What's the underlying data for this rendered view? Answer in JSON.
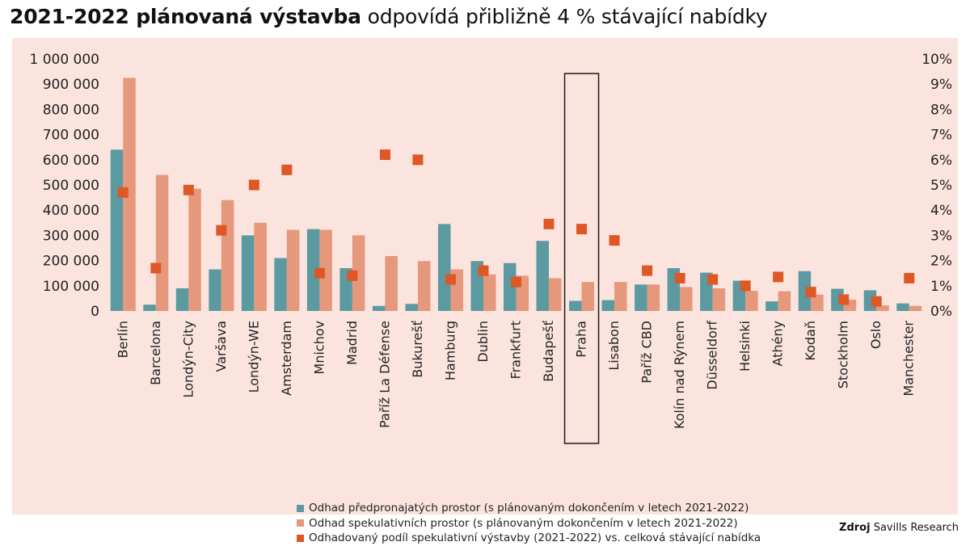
{
  "title": {
    "bold": "2021-2022 plánovaná výstavba",
    "normal": "odpovídá přibližně 4 % stávající nabídky"
  },
  "source": {
    "label": "Zdroj",
    "text": "Savills Research"
  },
  "colors": {
    "background": "#fbe4de",
    "preleased": "#5b9aa0",
    "speculative": "#e5987c",
    "share": "#de5826",
    "highlight_box": "#1a1a1a"
  },
  "chart_data": {
    "type": "bar",
    "categories": [
      "Berlín",
      "Barcelona",
      "Londýn-City",
      "Varšava",
      "Londýn-WE",
      "Amsterdam",
      "Mnichov",
      "Madrid",
      "Paříž La Défense",
      "Bukurešť",
      "Hamburg",
      "Dublin",
      "Frankfurt",
      "Budapešť",
      "Praha",
      "Lisabon",
      "Paříž CBD",
      "Kolín nad Rýnem",
      "Düsseldorf",
      "Helsinki",
      "Athény",
      "Kodaň",
      "Stockholm",
      "Oslo",
      "Manchester"
    ],
    "highlighted_category": "Praha",
    "series": [
      {
        "name": "Odhad předpronajatých prostor (s plánovaným dokončením v letech 2021-2022)",
        "kind": "bar",
        "axis": "left",
        "values": [
          640000,
          25000,
          90000,
          165000,
          300000,
          210000,
          325000,
          170000,
          20000,
          28000,
          345000,
          198000,
          190000,
          278000,
          40000,
          43000,
          105000,
          170000,
          152000,
          120000,
          38000,
          158000,
          88000,
          82000,
          30000
        ]
      },
      {
        "name": "Odhad spekulativních prostor (s plánovaným dokončením v letech 2021-2022)",
        "kind": "bar",
        "axis": "left",
        "values": [
          925000,
          540000,
          485000,
          440000,
          350000,
          322000,
          322000,
          300000,
          218000,
          198000,
          165000,
          145000,
          140000,
          130000,
          115000,
          115000,
          105000,
          95000,
          90000,
          80000,
          78000,
          65000,
          45000,
          22000,
          20000
        ]
      },
      {
        "name": "Odhadovaný podíl spekulativní výstavby (2021-2022) vs. celková stávající nabídka",
        "kind": "scatter",
        "axis": "right",
        "values": [
          4.7,
          1.7,
          4.8,
          3.2,
          5.0,
          5.6,
          1.5,
          1.4,
          6.2,
          6.0,
          1.25,
          1.6,
          1.15,
          3.45,
          3.25,
          2.8,
          1.6,
          1.3,
          1.25,
          1.0,
          1.35,
          0.75,
          0.45,
          0.38,
          1.3
        ]
      }
    ],
    "y_left": {
      "range": [
        0,
        1000000
      ],
      "ticks": [
        "0",
        "100 000",
        "200 000",
        "300 000",
        "400 000",
        "500 000",
        "600 000",
        "700 000",
        "800 000",
        "900 000",
        "1 000 000"
      ]
    },
    "y_right": {
      "range": [
        0,
        10
      ],
      "ticks": [
        "0%",
        "1%",
        "2%",
        "3%",
        "4%",
        "5%",
        "6%",
        "7%",
        "8%",
        "9%",
        "10%"
      ]
    },
    "legend_position": "bottom-center",
    "grid": false
  }
}
